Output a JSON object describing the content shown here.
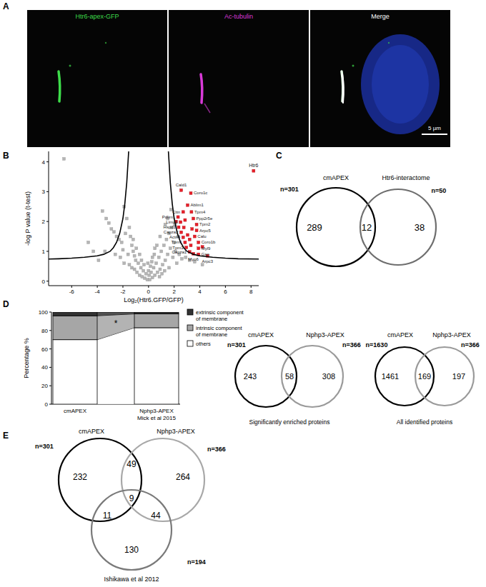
{
  "panel_labels": [
    "A",
    "B",
    "C",
    "D",
    "E"
  ],
  "microscopy": {
    "channels": [
      {
        "name": "Htr6-apex-GFP",
        "color": "#3ddc4a"
      },
      {
        "name": "Ac-tubulin",
        "color": "#d93ad8"
      },
      {
        "name": "Merge",
        "color": "#ffffff"
      }
    ],
    "scale_bar": "5 µm"
  },
  "chart_data": [
    {
      "type": "scatter",
      "xlabel": "Log₂(Htr6.GFP/GFP)",
      "ylabel": "-log P value (t-test)",
      "xlim": [
        -7.8,
        8.6
      ],
      "ylim": [
        -0.15,
        4.35
      ],
      "xticks": [
        -6,
        -4,
        -2,
        0,
        2,
        4,
        6,
        8
      ],
      "yticks": [
        0,
        1,
        2,
        3,
        4
      ],
      "series": [
        {
          "color": "#b5b5b5",
          "marker": "square",
          "x": [
            -6.6,
            -4.7,
            -4.3,
            -3.9,
            -3.6,
            -3.3,
            -3.1,
            -2.9,
            -2.7,
            -2.5,
            -2.3,
            -2.1,
            -1.9,
            -1.7,
            -1.5,
            -1.4,
            -1.3,
            -1.2,
            -1.1,
            -1.0,
            -2.6,
            -2.2,
            -1.9,
            -1.6,
            -1.5,
            -1.3,
            -1.1,
            -0.9,
            -0.8,
            -0.7,
            -0.6,
            -0.5,
            -0.4,
            -0.3,
            -0.2,
            -0.1,
            -3.4,
            -2.0,
            -1.8,
            -1.2,
            -0.95,
            -0.7,
            -0.55,
            -0.35,
            0.1,
            0.2,
            0.3,
            0.4,
            0.5,
            0.6,
            0.7,
            0.8,
            0.9,
            1.0,
            1.1,
            1.2,
            1.3,
            1.4,
            1.5,
            1.6,
            1.7,
            1.8,
            1.9,
            2.0,
            2.1,
            2.2,
            2.4,
            2.6,
            2.9,
            3.2,
            3.6,
            4.2,
            1.5,
            1.3,
            0.9,
            0.5,
            0.3,
            0.15,
            0.05,
            -0.05,
            0.0,
            0.25,
            0.45,
            0.65,
            0.85,
            1.05,
            1.25,
            1.6,
            2.3,
            2.05,
            1.75
          ],
          "values": [
            4.1,
            1.3,
            1.0,
            0.7,
            2.35,
            2.1,
            1.95,
            1.75,
            1.65,
            1.5,
            1.4,
            1.3,
            2.5,
            2.1,
            1.8,
            1.5,
            1.2,
            1.0,
            0.85,
            0.7,
            0.9,
            0.8,
            0.6,
            0.9,
            0.55,
            0.45,
            0.4,
            0.3,
            0.6,
            0.2,
            0.45,
            0.15,
            0.35,
            0.1,
            0.25,
            0.05,
            1.0,
            1.05,
            1.6,
            1.4,
            1.1,
            0.9,
            0.7,
            0.55,
            0.05,
            0.3,
            0.12,
            0.45,
            0.2,
            0.6,
            0.3,
            0.8,
            0.4,
            1.0,
            0.55,
            1.2,
            0.7,
            1.4,
            0.9,
            1.6,
            1.1,
            1.8,
            0.8,
            1.3,
            1.0,
            0.6,
            0.9,
            0.75,
            0.8,
            0.7,
            0.65,
            0.55,
            2.1,
            1.9,
            1.5,
            1.1,
            0.8,
            0.5,
            0.2,
            0.6,
            0.35,
            0.65,
            0.9,
            1.2,
            0.15,
            0.25,
            0.35,
            0.45,
            1.5,
            1.9,
            2.4
          ]
        },
        {
          "color": "#e8202a",
          "marker": "square",
          "x": [
            8.2,
            2.55,
            3.3,
            3.05,
            3.35,
            3.5,
            3.75,
            3.75,
            3.6,
            3.9,
            3.9,
            3.9,
            4.6,
            2.7,
            2.3,
            2.5,
            2.35,
            2.55,
            2.7,
            2.85,
            2.95,
            3.2,
            3.5,
            2.15,
            2.75,
            3.05,
            3.3,
            3.4,
            2.85,
            4.2,
            3.2
          ],
          "values": [
            3.7,
            3.05,
            2.95,
            2.55,
            2.32,
            2.1,
            1.9,
            1.7,
            1.5,
            1.3,
            1.1,
            0.9,
            0.85,
            2.32,
            2.15,
            1.98,
            1.81,
            1.64,
            1.47,
            1.3,
            1.13,
            0.98,
            0.92,
            2.0,
            1.8,
            1.55,
            1.2,
            1.75,
            2.05,
            1.15,
            1.4
          ],
          "labels": [
            "Htr6",
            "Cald1",
            "Coro1c",
            "Ablim1",
            "Tpm4",
            "Ppp2r5e",
            "Tpm2",
            "Arpc5",
            "Calu",
            "Coro1b",
            "Myl9",
            "Gsn",
            "Arpc3",
            "Cttn",
            "Pdlim1",
            "Lima1",
            "Hspd1",
            "Capza2",
            "Actn4",
            "Tpm1",
            "Tpm3",
            "Capza1",
            "Myo6",
            null,
            null,
            null,
            null,
            null,
            null,
            null,
            null
          ]
        },
        {
          "type": "line",
          "color": "#000000",
          "line_style": "solid",
          "x": [
            1.55,
            1.7,
            1.85,
            2.0,
            2.25,
            2.5,
            2.75,
            3.0,
            3.5,
            4.0,
            5.0,
            6.0,
            7.0,
            8.6
          ],
          "values": [
            4.35,
            3.3,
            2.6,
            2.1,
            1.6,
            1.3,
            1.12,
            1.0,
            0.9,
            0.85,
            0.8,
            0.77,
            0.75,
            0.74
          ]
        },
        {
          "type": "line",
          "color": "#000000",
          "line_style": "solid",
          "x": [
            -1.55,
            -1.7,
            -1.85,
            -2.0,
            -2.25,
            -2.5,
            -2.75,
            -3.0,
            -3.5,
            -4.0,
            -5.0,
            -6.0,
            -7.0,
            -7.8
          ],
          "values": [
            4.35,
            3.3,
            2.6,
            2.1,
            1.6,
            1.3,
            1.12,
            1.0,
            0.9,
            0.85,
            0.8,
            0.77,
            0.75,
            0.74
          ]
        }
      ]
    },
    {
      "type": "venn",
      "sets": [
        {
          "name": "cmAPEX",
          "n_label": "n=301",
          "color": "#000000"
        },
        {
          "name": "Htr6-interactome",
          "n_label": "n=50",
          "color": "#6e6e6e"
        }
      ],
      "regions": [
        {
          "sets": [
            0
          ],
          "value": 289
        },
        {
          "sets": [
            0,
            1
          ],
          "value": 12
        },
        {
          "sets": [
            1
          ],
          "value": 38
        }
      ]
    },
    {
      "type": "bar",
      "stacked": true,
      "ylabel": "Percentage %",
      "ylim": [
        0,
        100
      ],
      "yticks": [
        0,
        20,
        40,
        60,
        80,
        100
      ],
      "legend": "right",
      "categories": [
        "cmAPEX",
        "Nphp3-APEX Mick et al 2015"
      ],
      "series": [
        {
          "name": "others",
          "color": "#ffffff",
          "values": [
            70,
            83
          ]
        },
        {
          "name": "intrinsic component of membrane",
          "color": "#a6a6a6",
          "values": [
            26,
            15
          ]
        },
        {
          "name": "extrinsic component of membrane",
          "color": "#333333",
          "values": [
            4,
            2
          ]
        }
      ],
      "annotations": [
        {
          "text": "*"
        }
      ]
    },
    {
      "type": "venn",
      "caption": "Significantly enriched proteins",
      "sets": [
        {
          "name": "cmAPEX",
          "n_label": "n=301",
          "color": "#000000"
        },
        {
          "name": "Nphp3-APEX",
          "n_label": "n=366",
          "color": "#9a9a9a"
        }
      ],
      "regions": [
        {
          "sets": [
            0
          ],
          "value": 243
        },
        {
          "sets": [
            0,
            1
          ],
          "value": 58
        },
        {
          "sets": [
            1
          ],
          "value": 308
        }
      ]
    },
    {
      "type": "venn",
      "caption": "All identified proteins",
      "sets": [
        {
          "name": "cmAPEX",
          "n_label": "n=1630",
          "color": "#000000"
        },
        {
          "name": "Nphp3-APEX",
          "n_label": "n=366",
          "color": "#9a9a9a"
        }
      ],
      "regions": [
        {
          "sets": [
            0
          ],
          "value": 1461
        },
        {
          "sets": [
            0,
            1
          ],
          "value": 169
        },
        {
          "sets": [
            1
          ],
          "value": 197
        }
      ]
    },
    {
      "type": "venn",
      "sets": [
        {
          "name": "cmAPEX",
          "n_label": "n=301",
          "color": "#000000"
        },
        {
          "name": "Nphp3-APEX",
          "n_label": "n=366",
          "color": "#a8a8a8"
        },
        {
          "name": "Ishikawa et al 2012",
          "n_label": "n=194",
          "color": "#7a7a7a"
        }
      ],
      "regions": [
        {
          "sets": [
            0
          ],
          "value": 232
        },
        {
          "sets": [
            0,
            1
          ],
          "value": 49
        },
        {
          "sets": [
            1
          ],
          "value": 264
        },
        {
          "sets": [
            0,
            1,
            2
          ],
          "value": 9
        },
        {
          "sets": [
            0,
            2
          ],
          "value": 11
        },
        {
          "sets": [
            1,
            2
          ],
          "value": 44
        },
        {
          "sets": [
            2
          ],
          "value": 130
        }
      ]
    }
  ]
}
